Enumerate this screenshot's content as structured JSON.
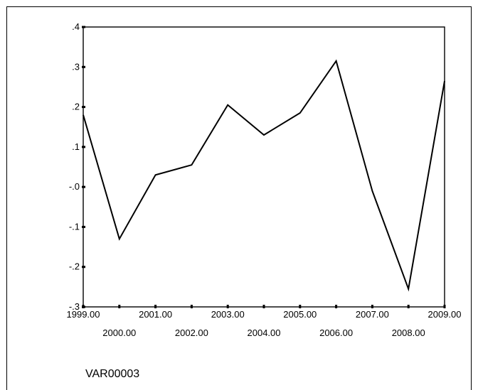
{
  "chart_data": {
    "type": "line",
    "x": [
      1999,
      2000,
      2001,
      2002,
      2003,
      2004,
      2005,
      2006,
      2007,
      2008,
      2009
    ],
    "x_tick_labels": [
      "1999.00",
      "2000.00",
      "2001.00",
      "2002.00",
      "2003.00",
      "2004.00",
      "2005.00",
      "2006.00",
      "2007.00",
      "2008.00",
      "2009.00"
    ],
    "values": [
      0.18,
      -0.13,
      0.03,
      0.055,
      0.205,
      0.13,
      0.185,
      0.315,
      -0.01,
      -0.255,
      0.265
    ],
    "y_ticks": [
      0.4,
      0.3,
      0.2,
      0.1,
      0.0,
      -0.1,
      -0.2,
      -0.3
    ],
    "y_tick_labels": [
      ".4",
      ".3",
      ".2",
      ".1",
      "-.0",
      "-.1",
      "-.2",
      "-.3"
    ],
    "ylim": [
      -0.3,
      0.4
    ],
    "xlim": [
      1999,
      2009
    ],
    "xlabel": "VAR00003",
    "ylabel": "",
    "title": "",
    "grid": false,
    "line_color": "#000000"
  }
}
